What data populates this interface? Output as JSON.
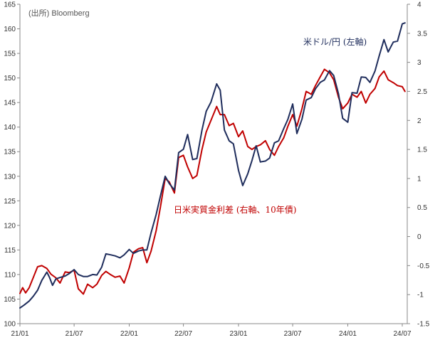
{
  "chart_data": {
    "type": "line",
    "source_note": "(出所) Bloomberg",
    "x_ticks": [
      "21/01",
      "21/07",
      "22/01",
      "22/07",
      "23/01",
      "23/07",
      "24/01",
      "24/07"
    ],
    "y_left": {
      "ticks": [
        "100",
        "105",
        "110",
        "115",
        "120",
        "125",
        "130",
        "135",
        "140",
        "145",
        "150",
        "155",
        "160",
        "165"
      ],
      "ylim": [
        100,
        165
      ]
    },
    "y_right": {
      "ticks": [
        "-1.5",
        "-1",
        "-0.5",
        "0",
        "0.5",
        "1",
        "1.5",
        "2",
        "2.5",
        "3",
        "3.5",
        "4"
      ],
      "ylim": [
        -1.5,
        4
      ]
    },
    "grid": false,
    "series": [
      {
        "name": "米ドル/円 (左軸)",
        "axis": "left",
        "color": "#1f2d5c",
        "points": [
          [
            "2021-01-01",
            103.2
          ],
          [
            "2021-01-15",
            103.8
          ],
          [
            "2021-02-01",
            104.6
          ],
          [
            "2021-02-15",
            105.6
          ],
          [
            "2021-03-01",
            106.8
          ],
          [
            "2021-03-15",
            108.8
          ],
          [
            "2021-04-01",
            110.5
          ],
          [
            "2021-04-10",
            109.4
          ],
          [
            "2021-04-20",
            107.8
          ],
          [
            "2021-05-01",
            109.1
          ],
          [
            "2021-05-15",
            109.4
          ],
          [
            "2021-06-01",
            109.7
          ],
          [
            "2021-06-15",
            110.2
          ],
          [
            "2021-07-01",
            111.0
          ],
          [
            "2021-07-15",
            110.0
          ],
          [
            "2021-08-01",
            109.6
          ],
          [
            "2021-08-15",
            109.6
          ],
          [
            "2021-09-01",
            110.0
          ],
          [
            "2021-09-15",
            109.9
          ],
          [
            "2021-10-01",
            111.5
          ],
          [
            "2021-10-15",
            114.2
          ],
          [
            "2021-11-01",
            114.0
          ],
          [
            "2021-11-15",
            113.8
          ],
          [
            "2021-12-01",
            113.4
          ],
          [
            "2021-12-15",
            114.0
          ],
          [
            "2022-01-01",
            115.1
          ],
          [
            "2022-01-15",
            114.3
          ],
          [
            "2022-02-01",
            114.8
          ],
          [
            "2022-02-15",
            115.0
          ],
          [
            "2022-03-01",
            115.0
          ],
          [
            "2022-03-15",
            118.5
          ],
          [
            "2022-04-01",
            122.2
          ],
          [
            "2022-04-15",
            125.9
          ],
          [
            "2022-05-01",
            130.0
          ],
          [
            "2022-05-15",
            128.5
          ],
          [
            "2022-06-01",
            127.2
          ],
          [
            "2022-06-15",
            134.8
          ],
          [
            "2022-07-01",
            135.5
          ],
          [
            "2022-07-15",
            138.5
          ],
          [
            "2022-08-01",
            133.4
          ],
          [
            "2022-08-15",
            133.6
          ],
          [
            "2022-09-01",
            139.4
          ],
          [
            "2022-09-15",
            143.2
          ],
          [
            "2022-10-01",
            145.1
          ],
          [
            "2022-10-20",
            148.8
          ],
          [
            "2022-11-01",
            147.5
          ],
          [
            "2022-11-15",
            139.4
          ],
          [
            "2022-12-01",
            137.2
          ],
          [
            "2022-12-15",
            136.6
          ],
          [
            "2023-01-01",
            131.2
          ],
          [
            "2023-01-15",
            128.1
          ],
          [
            "2023-02-01",
            130.5
          ],
          [
            "2023-02-15",
            133.2
          ],
          [
            "2023-03-01",
            136.2
          ],
          [
            "2023-03-15",
            132.9
          ],
          [
            "2023-04-01",
            133.1
          ],
          [
            "2023-04-15",
            133.7
          ],
          [
            "2023-05-01",
            136.8
          ],
          [
            "2023-05-15",
            137.2
          ],
          [
            "2023-06-01",
            139.7
          ],
          [
            "2023-06-15",
            141.6
          ],
          [
            "2023-07-01",
            144.7
          ],
          [
            "2023-07-15",
            138.7
          ],
          [
            "2023-08-01",
            141.6
          ],
          [
            "2023-08-15",
            145.5
          ],
          [
            "2023-09-01",
            146.0
          ],
          [
            "2023-09-15",
            147.8
          ],
          [
            "2023-10-01",
            149.1
          ],
          [
            "2023-10-15",
            149.6
          ],
          [
            "2023-11-01",
            151.5
          ],
          [
            "2023-11-15",
            150.5
          ],
          [
            "2023-12-01",
            146.8
          ],
          [
            "2023-12-15",
            141.8
          ],
          [
            "2024-01-01",
            141.0
          ],
          [
            "2024-01-15",
            147.0
          ],
          [
            "2024-02-01",
            146.9
          ],
          [
            "2024-02-15",
            150.2
          ],
          [
            "2024-03-01",
            150.1
          ],
          [
            "2024-03-15",
            149.1
          ],
          [
            "2024-04-01",
            151.4
          ],
          [
            "2024-04-15",
            154.5
          ],
          [
            "2024-05-01",
            157.8
          ],
          [
            "2024-05-15",
            155.3
          ],
          [
            "2024-06-01",
            157.3
          ],
          [
            "2024-06-15",
            157.5
          ],
          [
            "2024-07-01",
            161.0
          ],
          [
            "2024-07-10",
            161.2
          ]
        ]
      },
      {
        "name": "日米実質金利差 (右軸、10年債)",
        "axis": "right",
        "color": "#c00000",
        "points": [
          [
            "2021-01-01",
            -0.98
          ],
          [
            "2021-01-10",
            -0.88
          ],
          [
            "2021-01-20",
            -0.97
          ],
          [
            "2021-02-01",
            -0.88
          ],
          [
            "2021-02-15",
            -0.7
          ],
          [
            "2021-03-01",
            -0.52
          ],
          [
            "2021-03-15",
            -0.5
          ],
          [
            "2021-04-01",
            -0.55
          ],
          [
            "2021-04-15",
            -0.65
          ],
          [
            "2021-05-01",
            -0.71
          ],
          [
            "2021-05-15",
            -0.8
          ],
          [
            "2021-06-01",
            -0.61
          ],
          [
            "2021-06-15",
            -0.62
          ],
          [
            "2021-07-01",
            -0.58
          ],
          [
            "2021-07-15",
            -0.9
          ],
          [
            "2021-08-01",
            -0.99
          ],
          [
            "2021-08-15",
            -0.82
          ],
          [
            "2021-09-01",
            -0.88
          ],
          [
            "2021-09-15",
            -0.82
          ],
          [
            "2021-10-01",
            -0.67
          ],
          [
            "2021-10-15",
            -0.6
          ],
          [
            "2021-11-01",
            -0.66
          ],
          [
            "2021-11-15",
            -0.7
          ],
          [
            "2021-12-01",
            -0.68
          ],
          [
            "2021-12-15",
            -0.8
          ],
          [
            "2022-01-01",
            -0.54
          ],
          [
            "2022-01-15",
            -0.27
          ],
          [
            "2022-02-01",
            -0.21
          ],
          [
            "2022-02-15",
            -0.19
          ],
          [
            "2022-03-01",
            -0.45
          ],
          [
            "2022-03-15",
            -0.25
          ],
          [
            "2022-04-01",
            0.1
          ],
          [
            "2022-04-15",
            0.5
          ],
          [
            "2022-05-01",
            1.0
          ],
          [
            "2022-05-15",
            0.94
          ],
          [
            "2022-06-01",
            0.75
          ],
          [
            "2022-06-15",
            1.36
          ],
          [
            "2022-07-01",
            1.4
          ],
          [
            "2022-07-15",
            1.2
          ],
          [
            "2022-08-01",
            1.0
          ],
          [
            "2022-08-15",
            1.05
          ],
          [
            "2022-09-01",
            1.5
          ],
          [
            "2022-09-15",
            1.8
          ],
          [
            "2022-10-01",
            2.0
          ],
          [
            "2022-10-20",
            2.24
          ],
          [
            "2022-11-01",
            2.1
          ],
          [
            "2022-11-15",
            2.1
          ],
          [
            "2022-12-01",
            1.91
          ],
          [
            "2022-12-15",
            1.95
          ],
          [
            "2023-01-01",
            1.72
          ],
          [
            "2023-01-15",
            1.82
          ],
          [
            "2023-02-01",
            1.55
          ],
          [
            "2023-02-15",
            1.5
          ],
          [
            "2023-03-01",
            1.55
          ],
          [
            "2023-03-15",
            1.58
          ],
          [
            "2023-04-01",
            1.65
          ],
          [
            "2023-04-15",
            1.5
          ],
          [
            "2023-05-01",
            1.4
          ],
          [
            "2023-05-15",
            1.55
          ],
          [
            "2023-06-01",
            1.7
          ],
          [
            "2023-06-15",
            1.9
          ],
          [
            "2023-07-01",
            2.1
          ],
          [
            "2023-07-15",
            1.9
          ],
          [
            "2023-08-01",
            2.2
          ],
          [
            "2023-08-15",
            2.5
          ],
          [
            "2023-09-01",
            2.45
          ],
          [
            "2023-09-15",
            2.6
          ],
          [
            "2023-10-01",
            2.75
          ],
          [
            "2023-10-15",
            2.88
          ],
          [
            "2023-11-01",
            2.82
          ],
          [
            "2023-11-15",
            2.7
          ],
          [
            "2023-12-01",
            2.4
          ],
          [
            "2023-12-15",
            2.2
          ],
          [
            "2024-01-01",
            2.3
          ],
          [
            "2024-01-15",
            2.45
          ],
          [
            "2024-02-01",
            2.4
          ],
          [
            "2024-02-15",
            2.5
          ],
          [
            "2024-03-01",
            2.3
          ],
          [
            "2024-03-15",
            2.45
          ],
          [
            "2024-04-01",
            2.55
          ],
          [
            "2024-04-15",
            2.75
          ],
          [
            "2024-05-01",
            2.85
          ],
          [
            "2024-05-15",
            2.7
          ],
          [
            "2024-06-01",
            2.65
          ],
          [
            "2024-06-15",
            2.6
          ],
          [
            "2024-07-01",
            2.58
          ],
          [
            "2024-07-10",
            2.5
          ]
        ]
      }
    ],
    "series_labels": [
      {
        "text": "米ドル/円 (左軸)",
        "color": "#1f2d5c"
      },
      {
        "text": "日米実質金利差 (右軸、10年債)",
        "color": "#c00000"
      }
    ]
  }
}
